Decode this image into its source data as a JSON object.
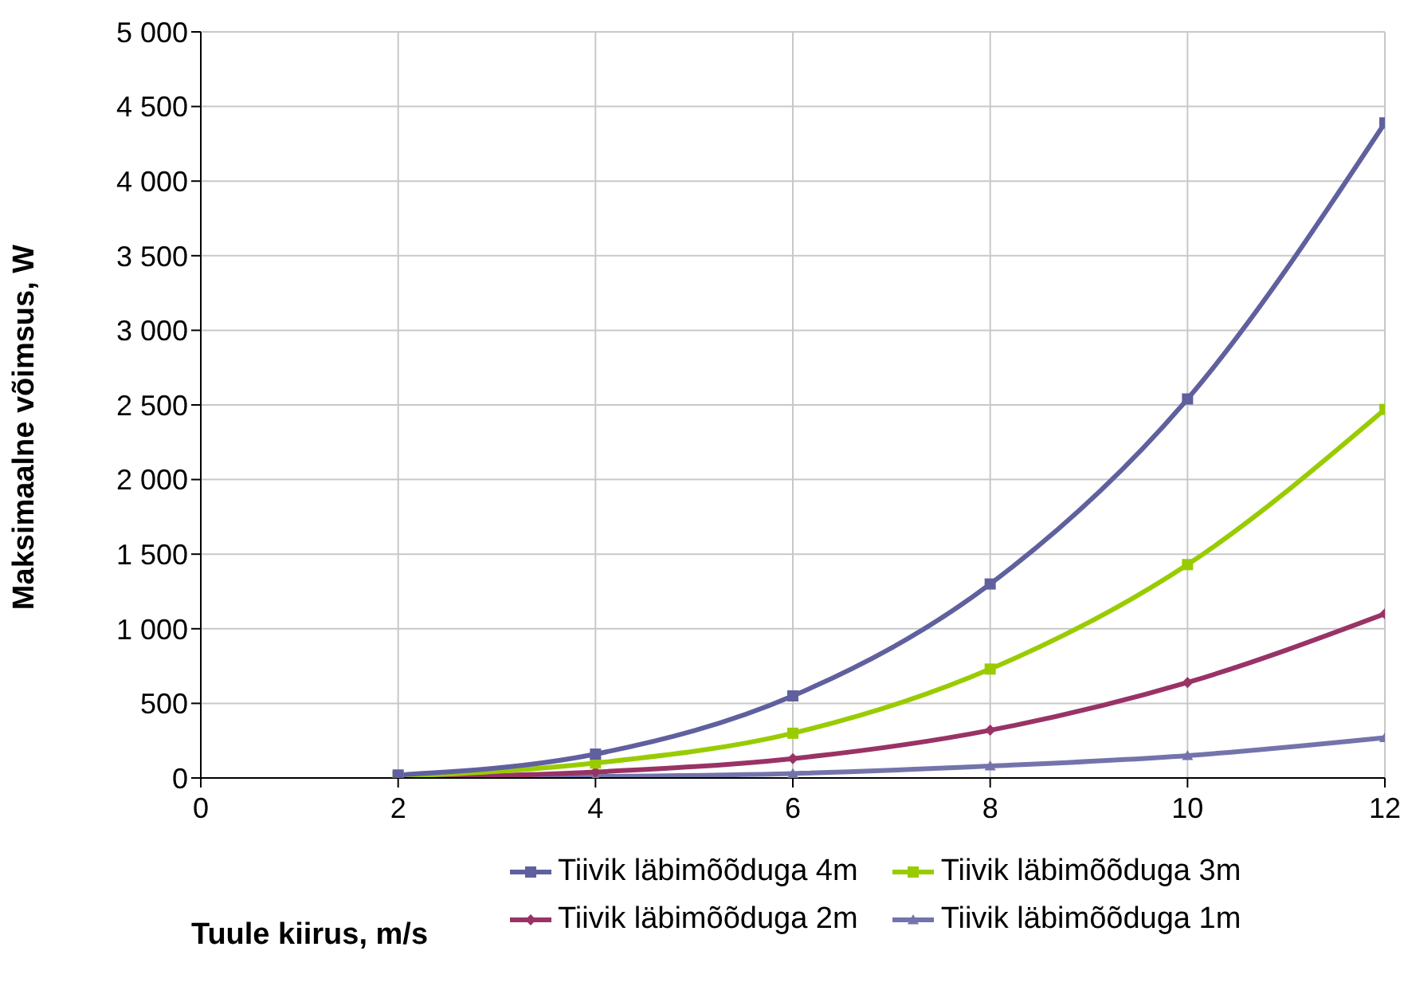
{
  "chart_data": {
    "type": "line",
    "xlabel": "Tuule kiirus, m/s",
    "ylabel": "Maksimaalne võimsus, W",
    "x": [
      2,
      4,
      6,
      8,
      10,
      12
    ],
    "series": [
      {
        "name": "Tiivik läbimõõduga 4m",
        "color": "#60609f",
        "marker": "square",
        "values": [
          20,
          160,
          550,
          1300,
          2540,
          4390
        ]
      },
      {
        "name": "Tiivik läbimõõduga 3m",
        "color": "#99cc00",
        "marker": "square",
        "values": [
          10,
          100,
          300,
          730,
          1430,
          2470
        ]
      },
      {
        "name": "Tiivik läbimõõduga 2m",
        "color": "#993366",
        "marker": "diamond",
        "values": [
          0,
          40,
          130,
          320,
          640,
          1100
        ]
      },
      {
        "name": "Tiivik läbimõõduga 1m",
        "color": "#7474ac",
        "marker": "triangle",
        "values": [
          0,
          10,
          30,
          80,
          150,
          270
        ]
      }
    ],
    "xlim": [
      0,
      12
    ],
    "xticks": [
      0,
      2,
      4,
      6,
      8,
      10,
      12
    ],
    "ylim": [
      0,
      5000
    ],
    "yticks": [
      0,
      500,
      {
        "value": 1000,
        "label": "1 000"
      },
      {
        "value": 1500,
        "label": "1 500"
      },
      {
        "value": 2000,
        "label": "2 000"
      },
      {
        "value": 2500,
        "label": "2 500"
      },
      {
        "value": 3000,
        "label": "3 000"
      },
      {
        "value": 3500,
        "label": "3 500"
      },
      {
        "value": 4000,
        "label": "4 000"
      },
      {
        "value": 4500,
        "label": "4 500"
      },
      {
        "value": 5000,
        "label": "5 000"
      }
    ],
    "grid": true,
    "legend": "bottom",
    "line_style": "solid"
  }
}
